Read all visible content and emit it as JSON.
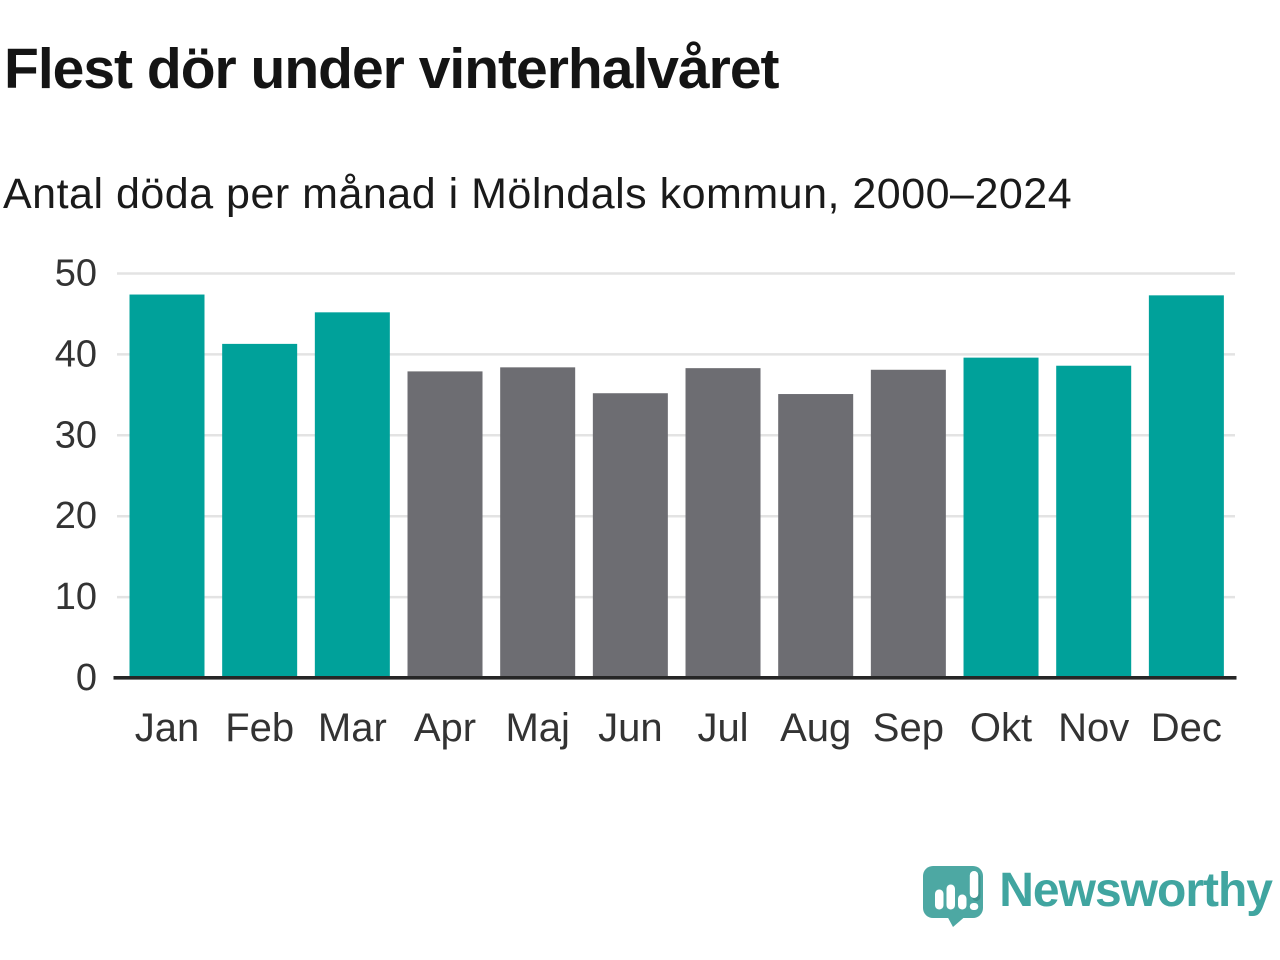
{
  "header": {
    "title": "Flest dör under vinterhalvåret",
    "subtitle": "Antal döda per månad i Mölndals kommun, 2000–2024"
  },
  "chart_data": {
    "type": "bar",
    "title": "Flest dör under vinterhalvåret",
    "subtitle": "Antal döda per månad i Mölndals kommun, 2000–2024",
    "categories": [
      "Jan",
      "Feb",
      "Mar",
      "Apr",
      "Maj",
      "Jun",
      "Jul",
      "Aug",
      "Sep",
      "Okt",
      "Nov",
      "Dec"
    ],
    "values": [
      47.4,
      41.3,
      45.2,
      37.9,
      38.4,
      35.2,
      38.3,
      35.1,
      38.1,
      39.6,
      38.6,
      47.3
    ],
    "bar_colors": [
      "#00a19a",
      "#00a19a",
      "#00a19a",
      "#6d6d72",
      "#6d6d72",
      "#6d6d72",
      "#6d6d72",
      "#6d6d72",
      "#6d6d72",
      "#00a19a",
      "#00a19a",
      "#00a19a"
    ],
    "color_meaning": {
      "winter_half_year": "#00a19a",
      "summer_half_year": "#6d6d72"
    },
    "xlabel": "",
    "ylabel": "",
    "ylim": [
      0,
      50
    ],
    "yticks": [
      0,
      10,
      20,
      30,
      40,
      50
    ],
    "grid": true,
    "legend": "none"
  },
  "footer": {
    "brand": "Newsworthy",
    "logo_icon": "newsworthy-speech-bubble-bar-chart-icon",
    "brand_color": "#40a5a0",
    "icon_color": "#4da8a3"
  },
  "colors": {
    "background": "#ffffff",
    "accent_teal": "#00a19a",
    "neutral_gray": "#6d6d72",
    "gridline": "#e3e3e3",
    "axis_line": "#262626",
    "title_text": "#141414",
    "tick_text": "#333333"
  }
}
